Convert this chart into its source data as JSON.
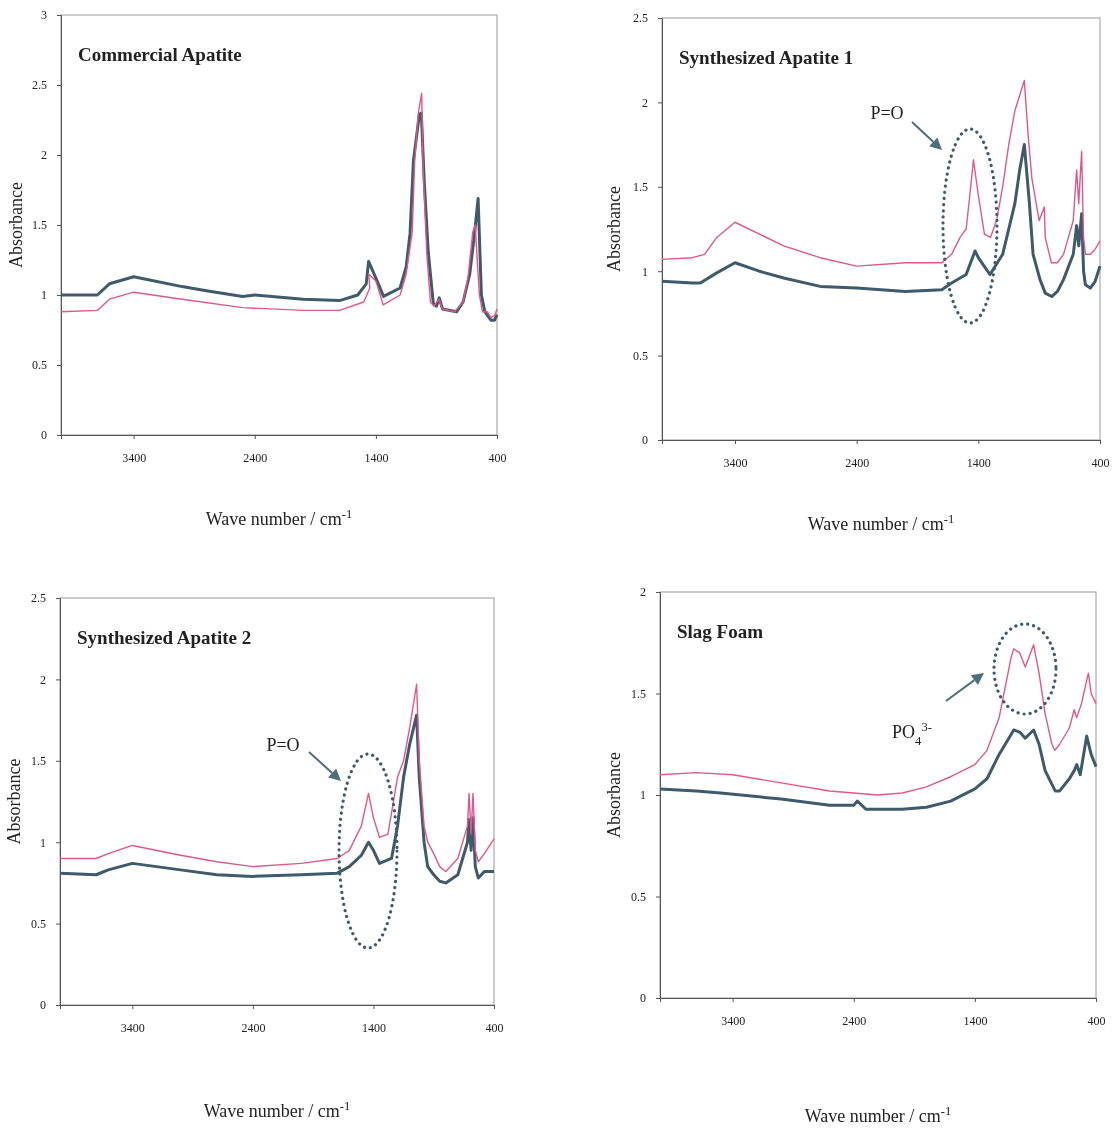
{
  "chart_data": [
    {
      "type": "line",
      "title": "Commercial Apatite",
      "xlabel": "Wave number / cm$^{-1}$",
      "ylabel": "Absorbance",
      "xlim": [
        4000,
        400
      ],
      "xticks": [
        3400,
        2400,
        1400,
        400
      ],
      "ylim": [
        0,
        3
      ],
      "yticks": [
        0,
        0.5,
        1,
        1.5,
        2,
        2.5,
        3
      ],
      "series": [
        {
          "color": "#3e5a6b",
          "x": [
            4000,
            3700,
            3600,
            3400,
            3000,
            2800,
            2500,
            2400,
            2000,
            1700,
            1550,
            1480,
            1460,
            1400,
            1337,
            1200,
            1150,
            1118,
            1090,
            1041,
            1025,
            1000,
            967,
            926,
            900,
            877,
            850,
            734,
            680,
            625,
            584,
            556,
            529,
            500,
            450,
            420,
            400
          ],
          "values": [
            1.0,
            1.0,
            1.08,
            1.13,
            1.06,
            1.03,
            0.99,
            1.0,
            0.97,
            0.96,
            1.0,
            1.08,
            1.24,
            1.12,
            0.99,
            1.05,
            1.2,
            1.44,
            1.96,
            2.29,
            2.3,
            1.8,
            1.3,
            0.94,
            0.92,
            0.98,
            0.9,
            0.88,
            0.95,
            1.15,
            1.45,
            1.69,
            1.0,
            0.88,
            0.82,
            0.82,
            0.86
          ]
        },
        {
          "color": "#e0578a",
          "x": [
            4000,
            3700,
            3600,
            3400,
            3000,
            2500,
            2000,
            1700,
            1500,
            1450,
            1460,
            1400,
            1340,
            1200,
            1150,
            1100,
            1080,
            1050,
            1022,
            1010,
            980,
            950,
            920,
            880,
            850,
            750,
            680,
            640,
            600,
            580,
            560,
            545,
            520,
            480,
            450,
            420,
            400
          ],
          "values": [
            0.88,
            0.89,
            0.97,
            1.02,
            0.97,
            0.91,
            0.89,
            0.89,
            0.95,
            1.05,
            1.15,
            1.1,
            0.93,
            1.0,
            1.15,
            1.45,
            1.95,
            2.3,
            2.44,
            1.9,
            1.3,
            0.95,
            0.92,
            0.97,
            0.9,
            0.88,
            0.95,
            1.12,
            1.45,
            1.5,
            1.2,
            1.0,
            0.88,
            0.88,
            0.84,
            0.85,
            0.9
          ]
        }
      ]
    },
    {
      "type": "line",
      "title": "Synthesized Apatite 1",
      "xlabel": "Wave number / cm$^{-1}$",
      "ylabel": "Absorbance",
      "xlim": [
        4000,
        400
      ],
      "xticks": [
        3400,
        2400,
        1400,
        400
      ],
      "ylim": [
        0,
        2.5
      ],
      "yticks": [
        0,
        0.5,
        1,
        1.5,
        2,
        2.5
      ],
      "annotations": [
        "P=O"
      ],
      "series": [
        {
          "color": "#3e5a6b",
          "x": [
            4000,
            3750,
            3685,
            3550,
            3400,
            3200,
            3000,
            2700,
            2400,
            2000,
            1700,
            1620,
            1500,
            1427,
            1400,
            1304,
            1200,
            1100,
            1060,
            1022,
            980,
            950,
            893,
            850,
            797,
            750,
            700,
            620,
            592,
            575,
            551,
            535,
            520,
            480,
            440,
            400
          ],
          "values": [
            0.94,
            0.93,
            0.93,
            0.99,
            1.05,
            1.0,
            0.96,
            0.91,
            0.9,
            0.88,
            0.89,
            0.93,
            0.98,
            1.12,
            1.08,
            0.98,
            1.1,
            1.4,
            1.6,
            1.75,
            1.4,
            1.1,
            0.95,
            0.87,
            0.85,
            0.88,
            0.95,
            1.1,
            1.27,
            1.15,
            1.34,
            1.0,
            0.92,
            0.9,
            0.94,
            1.03
          ]
        },
        {
          "color": "#e0578a",
          "x": [
            4000,
            3750,
            3650,
            3550,
            3400,
            3200,
            3000,
            2700,
            2400,
            2000,
            1700,
            1620,
            1550,
            1500,
            1470,
            1440,
            1400,
            1350,
            1300,
            1250,
            1200,
            1150,
            1100,
            1022,
            990,
            960,
            900,
            858,
            850,
            800,
            750,
            700,
            620,
            592,
            575,
            551,
            535,
            520,
            480,
            440,
            400
          ],
          "values": [
            1.07,
            1.08,
            1.1,
            1.2,
            1.29,
            1.22,
            1.15,
            1.08,
            1.03,
            1.05,
            1.05,
            1.1,
            1.2,
            1.25,
            1.45,
            1.66,
            1.45,
            1.22,
            1.2,
            1.3,
            1.5,
            1.75,
            1.95,
            2.13,
            1.8,
            1.55,
            1.3,
            1.38,
            1.2,
            1.05,
            1.05,
            1.1,
            1.3,
            1.6,
            1.4,
            1.71,
            1.2,
            1.1,
            1.1,
            1.13,
            1.18
          ]
        }
      ]
    },
    {
      "type": "line",
      "title": "Synthesized Apatite 2",
      "xlabel": "Wave number / cm$^{-1}$",
      "ylabel": "Absorbance",
      "xlim": [
        4000,
        400
      ],
      "xticks": [
        3400,
        2400,
        1400,
        400
      ],
      "ylim": [
        0,
        2.5
      ],
      "yticks": [
        0,
        0.5,
        1,
        1.5,
        2,
        2.5
      ],
      "annotations": [
        "P=O"
      ],
      "series": [
        {
          "color": "#3e5a6b",
          "x": [
            4000,
            3700,
            3600,
            3400,
            3000,
            2700,
            2400,
            2000,
            1700,
            1600,
            1500,
            1441,
            1400,
            1350,
            1250,
            1200,
            1150,
            1100,
            1042,
            1020,
            980,
            950,
            900,
            850,
            800,
            700,
            620,
            607,
            590,
            574,
            555,
            530,
            480,
            400
          ],
          "values": [
            0.81,
            0.8,
            0.83,
            0.87,
            0.83,
            0.8,
            0.79,
            0.8,
            0.81,
            0.85,
            0.92,
            1.0,
            0.95,
            0.87,
            0.9,
            1.1,
            1.4,
            1.6,
            1.78,
            1.4,
            1.0,
            0.85,
            0.8,
            0.76,
            0.75,
            0.8,
            1.0,
            1.14,
            0.95,
            1.15,
            0.85,
            0.78,
            0.82,
            0.82
          ]
        },
        {
          "color": "#e0578a",
          "x": [
            4000,
            3700,
            3600,
            3400,
            3000,
            2700,
            2400,
            2000,
            1700,
            1600,
            1500,
            1441,
            1400,
            1350,
            1280,
            1200,
            1150,
            1100,
            1042,
            1020,
            980,
            950,
            900,
            850,
            800,
            700,
            620,
            607,
            590,
            574,
            555,
            530,
            480,
            400
          ],
          "values": [
            0.9,
            0.9,
            0.93,
            0.98,
            0.92,
            0.88,
            0.85,
            0.87,
            0.9,
            0.95,
            1.1,
            1.3,
            1.15,
            1.03,
            1.05,
            1.4,
            1.5,
            1.7,
            1.97,
            1.5,
            1.1,
            1.0,
            0.93,
            0.85,
            0.82,
            0.9,
            1.1,
            1.3,
            1.05,
            1.3,
            0.95,
            0.88,
            0.93,
            1.02
          ]
        }
      ]
    },
    {
      "type": "line",
      "title": "Slag Foam",
      "xlabel": "Wave number / cm$^{-1}$",
      "ylabel": "Absorbance",
      "xlim": [
        4000,
        400
      ],
      "xticks": [
        3400,
        2400,
        1400,
        400
      ],
      "ylim": [
        0,
        2
      ],
      "yticks": [
        0,
        0.5,
        1,
        1.5,
        2
      ],
      "annotations": [
        "PO$_{4}$$^{3-}$"
      ],
      "series": [
        {
          "color": "#3e5a6b",
          "x": [
            4000,
            3700,
            3500,
            3000,
            2600,
            2400,
            2370,
            2300,
            2000,
            1800,
            1600,
            1400,
            1300,
            1200,
            1079,
            1030,
            984,
            915,
            870,
            820,
            737,
            700,
            620,
            580,
            559,
            530,
            477,
            440,
            400
          ],
          "values": [
            1.03,
            1.02,
            1.01,
            0.98,
            0.95,
            0.95,
            0.97,
            0.93,
            0.93,
            0.94,
            0.97,
            1.03,
            1.08,
            1.2,
            1.32,
            1.31,
            1.28,
            1.32,
            1.25,
            1.12,
            1.02,
            1.02,
            1.08,
            1.12,
            1.15,
            1.1,
            1.29,
            1.2,
            1.14
          ]
        },
        {
          "color": "#e0578a",
          "x": [
            4000,
            3700,
            3400,
            3000,
            2600,
            2400,
            2200,
            2000,
            1800,
            1600,
            1400,
            1300,
            1200,
            1100,
            1079,
            1030,
            984,
            915,
            870,
            820,
            764,
            740,
            700,
            620,
            580,
            560,
            520,
            463,
            440,
            400
          ],
          "values": [
            1.1,
            1.11,
            1.1,
            1.06,
            1.02,
            1.01,
            1.0,
            1.01,
            1.04,
            1.09,
            1.15,
            1.22,
            1.38,
            1.68,
            1.72,
            1.7,
            1.63,
            1.74,
            1.6,
            1.4,
            1.25,
            1.22,
            1.25,
            1.33,
            1.42,
            1.38,
            1.45,
            1.6,
            1.5,
            1.45
          ]
        }
      ]
    }
  ]
}
